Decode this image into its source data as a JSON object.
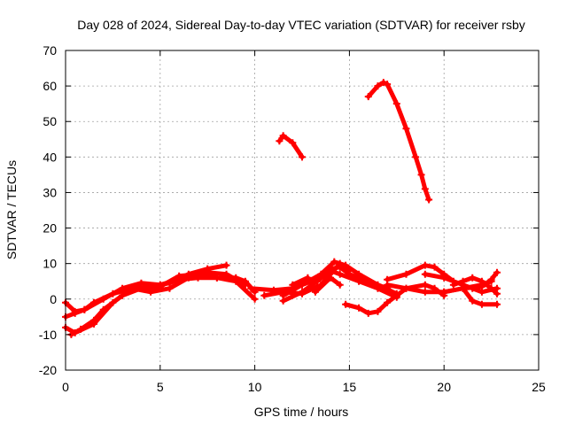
{
  "chart_data": {
    "type": "line",
    "title": "Day 028 of 2024, Sidereal Day-to-day VTEC variation (SDTVAR) for receiver rsby",
    "xlabel": "GPS time / hours",
    "ylabel": "SDTVAR / TECUs",
    "xlim": [
      0,
      25
    ],
    "ylim": [
      -20,
      70
    ],
    "xticks": [
      "0",
      "5",
      "10",
      "15",
      "20",
      "25"
    ],
    "yticks": [
      "-20",
      "-10",
      "0",
      "10",
      "20",
      "30",
      "40",
      "50",
      "60",
      "70"
    ],
    "grid": true,
    "color": "#ff0000",
    "series": [
      {
        "name": "trace-1",
        "points": [
          [
            0,
            -1
          ],
          [
            0.5,
            -3.5
          ],
          [
            1,
            -3
          ],
          [
            2,
            0
          ],
          [
            3,
            3
          ],
          [
            4,
            4.5
          ],
          [
            5,
            4
          ],
          [
            6,
            5.5
          ],
          [
            7,
            6
          ],
          [
            8,
            6
          ],
          [
            9,
            6
          ],
          [
            9.5,
            5
          ],
          [
            10,
            2
          ]
        ]
      },
      {
        "name": "trace-2",
        "points": [
          [
            0,
            -8
          ],
          [
            0.5,
            -9.5
          ],
          [
            1.5,
            -7
          ],
          [
            2.5,
            -1
          ],
          [
            3.5,
            3
          ],
          [
            4.5,
            3.5
          ],
          [
            5.5,
            4.5
          ],
          [
            6.5,
            7
          ],
          [
            7.5,
            8.5
          ],
          [
            8.5,
            9.5
          ]
        ]
      },
      {
        "name": "trace-3",
        "points": [
          [
            0,
            -5
          ],
          [
            0.5,
            -4
          ],
          [
            1,
            -3
          ],
          [
            1.5,
            -1
          ],
          [
            2.5,
            1.5
          ],
          [
            3.5,
            3
          ],
          [
            4.5,
            2
          ],
          [
            5.5,
            3
          ],
          [
            6.5,
            6
          ],
          [
            7.5,
            7.5
          ],
          [
            8.5,
            7
          ],
          [
            9.5,
            4
          ]
        ]
      },
      {
        "name": "trace-4",
        "points": [
          [
            0.3,
            -10
          ],
          [
            0.8,
            -8.5
          ],
          [
            1.5,
            -6
          ],
          [
            2,
            -3
          ],
          [
            3,
            1
          ],
          [
            4,
            3
          ],
          [
            5,
            3.5
          ],
          [
            6,
            6.5
          ],
          [
            7,
            7
          ],
          [
            8,
            6
          ],
          [
            9,
            5
          ],
          [
            10,
            0
          ]
        ]
      },
      {
        "name": "trace-5",
        "points": [
          [
            9.8,
            3
          ],
          [
            11,
            2.5
          ],
          [
            12,
            3
          ],
          [
            13,
            5
          ],
          [
            14,
            8.5
          ],
          [
            14.5,
            9
          ],
          [
            15,
            7
          ],
          [
            16,
            5
          ],
          [
            17,
            3
          ],
          [
            17.5,
            1
          ]
        ]
      },
      {
        "name": "trace-6",
        "points": [
          [
            11.5,
            1
          ],
          [
            12.5,
            4
          ],
          [
            13.5,
            7
          ],
          [
            14.2,
            10.5
          ],
          [
            14.8,
            9.5
          ],
          [
            15.5,
            7
          ],
          [
            16.5,
            4
          ],
          [
            17.5,
            1.5
          ]
        ]
      },
      {
        "name": "trace-7",
        "points": [
          [
            11.5,
            -0.5
          ],
          [
            12.5,
            2
          ],
          [
            13.3,
            5
          ],
          [
            14,
            8
          ],
          [
            14.5,
            7
          ],
          [
            15.5,
            5
          ],
          [
            16.5,
            3
          ],
          [
            17.5,
            0.5
          ]
        ]
      },
      {
        "name": "trace-8",
        "points": [
          [
            12,
            4
          ],
          [
            12.8,
            6
          ],
          [
            13.2,
            2
          ],
          [
            14,
            6
          ],
          [
            14.5,
            4
          ]
        ]
      },
      {
        "name": "trace-9",
        "points": [
          [
            10.5,
            1
          ],
          [
            11.5,
            2
          ],
          [
            12.5,
            1.5
          ],
          [
            13.5,
            4
          ],
          [
            14.5,
            10
          ],
          [
            15,
            8
          ]
        ]
      },
      {
        "name": "trace-10",
        "points": [
          [
            14.8,
            -1.5
          ],
          [
            15.5,
            -2.5
          ],
          [
            16,
            -4
          ],
          [
            16.5,
            -3.5
          ],
          [
            17,
            -1
          ],
          [
            17.5,
            1
          ],
          [
            18,
            3
          ],
          [
            19,
            4
          ],
          [
            19.5,
            3
          ],
          [
            20,
            1
          ]
        ]
      },
      {
        "name": "trace-11",
        "points": [
          [
            17,
            5.5
          ],
          [
            18,
            7
          ],
          [
            19,
            9.5
          ],
          [
            19.5,
            9
          ],
          [
            20,
            7
          ],
          [
            20.5,
            5
          ]
        ]
      },
      {
        "name": "trace-12",
        "points": [
          [
            17,
            4
          ],
          [
            18,
            3
          ],
          [
            19,
            2
          ],
          [
            20,
            2
          ],
          [
            21,
            3
          ],
          [
            22,
            4
          ],
          [
            22.5,
            5
          ]
        ]
      },
      {
        "name": "trace-13",
        "points": [
          [
            19,
            7
          ],
          [
            20,
            6
          ],
          [
            21,
            4
          ],
          [
            21.5,
            3
          ],
          [
            22,
            2
          ],
          [
            22.8,
            3
          ]
        ]
      },
      {
        "name": "trace-14",
        "points": [
          [
            20.5,
            4
          ],
          [
            21,
            5
          ],
          [
            21.5,
            6
          ],
          [
            22,
            5
          ],
          [
            22.5,
            3
          ],
          [
            22.8,
            1.5
          ]
        ]
      },
      {
        "name": "trace-15",
        "points": [
          [
            20,
            2
          ],
          [
            21,
            3
          ],
          [
            22,
            3.5
          ],
          [
            22.5,
            5.5
          ],
          [
            22.8,
            7.5
          ]
        ]
      },
      {
        "name": "trace-16",
        "points": [
          [
            21,
            3
          ],
          [
            21.5,
            -0.5
          ],
          [
            22,
            -1.5
          ],
          [
            22.8,
            -1.5
          ]
        ]
      },
      {
        "name": "trace-17",
        "points": [
          [
            11.3,
            44.5
          ],
          [
            11.5,
            46
          ],
          [
            12,
            44
          ],
          [
            12.5,
            40
          ]
        ]
      },
      {
        "name": "trace-18",
        "points": [
          [
            16,
            57
          ],
          [
            16.5,
            60
          ],
          [
            16.8,
            61
          ],
          [
            17,
            60.5
          ],
          [
            17.5,
            55
          ],
          [
            18,
            48
          ],
          [
            18.5,
            40
          ],
          [
            18.8,
            35
          ],
          [
            19,
            31
          ],
          [
            19.2,
            28
          ]
        ]
      }
    ]
  }
}
